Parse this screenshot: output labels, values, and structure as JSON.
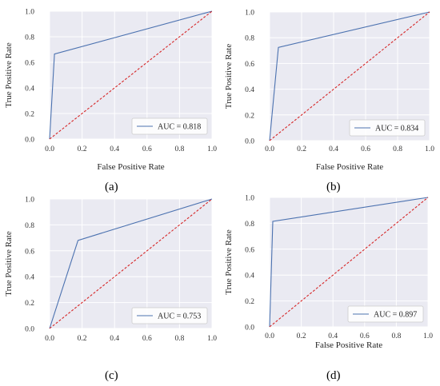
{
  "chart_data": [
    {
      "type": "line",
      "caption": "(a)",
      "xlabel": "False Positive Rate",
      "ylabel": "True Positive Rate",
      "xlim": [
        0.0,
        1.0
      ],
      "ylim": [
        0.0,
        1.0
      ],
      "xticks": [
        "0.0",
        "0.2",
        "0.4",
        "0.6",
        "0.8",
        "1.0"
      ],
      "yticks": [
        "0.0",
        "0.2",
        "0.4",
        "0.6",
        "0.8",
        "1.0"
      ],
      "grid": true,
      "legend": "lower-right",
      "series": [
        {
          "name": "AUC = 0.818",
          "color": "#4c72b0",
          "x": [
            0.0,
            0.03,
            1.0
          ],
          "y": [
            0.0,
            0.665,
            1.0
          ]
        },
        {
          "color": "#d62728",
          "style": "dashed",
          "x": [
            0.0,
            1.0
          ],
          "y": [
            0.0,
            1.0
          ]
        }
      ]
    },
    {
      "type": "line",
      "caption": "(b)",
      "xlabel": "False Positive Rate",
      "ylabel": "True Positive Rate",
      "xlim": [
        0.0,
        1.0
      ],
      "ylim": [
        0.0,
        1.0
      ],
      "xticks": [
        "0.0",
        "0.2",
        "0.4",
        "0.6",
        "0.8",
        "1.0"
      ],
      "yticks": [
        "0.0",
        "0.2",
        "0.4",
        "0.6",
        "0.8",
        "1.0"
      ],
      "grid": true,
      "legend": "lower-right",
      "series": [
        {
          "name": "AUC = 0.834",
          "color": "#4c72b0",
          "x": [
            0.0,
            0.055,
            1.0
          ],
          "y": [
            0.0,
            0.725,
            1.0
          ]
        },
        {
          "color": "#d62728",
          "style": "dashed",
          "x": [
            0.0,
            1.0
          ],
          "y": [
            0.0,
            1.0
          ]
        }
      ]
    },
    {
      "type": "line",
      "caption": "(c)",
      "xlabel": "",
      "ylabel": "True Positive Rate",
      "xlim": [
        0.0,
        1.0
      ],
      "ylim": [
        0.0,
        1.0
      ],
      "xticks": [
        "0.0",
        "0.2",
        "0.4",
        "0.6",
        "0.8",
        "1.0"
      ],
      "yticks": [
        "0.0",
        "0.2",
        "0.4",
        "0.6",
        "0.8",
        "1.0"
      ],
      "grid": true,
      "legend": "lower-right",
      "series": [
        {
          "name": "AUC = 0.753",
          "color": "#4c72b0",
          "x": [
            0.0,
            0.175,
            1.0
          ],
          "y": [
            0.0,
            0.68,
            1.0
          ]
        },
        {
          "color": "#d62728",
          "style": "dashed",
          "x": [
            0.0,
            1.0
          ],
          "y": [
            0.0,
            1.0
          ]
        }
      ]
    },
    {
      "type": "line",
      "caption": "(d)",
      "xlabel": "False Positive Rate",
      "ylabel": "True Positive Rate",
      "xlim": [
        0.0,
        1.0
      ],
      "ylim": [
        0.0,
        1.0
      ],
      "xticks": [
        "0.0",
        "0.2",
        "0.4",
        "0.6",
        "0.8",
        "1.0"
      ],
      "yticks": [
        "0.0",
        "0.2",
        "0.4",
        "0.6",
        "0.8",
        "1.0"
      ],
      "grid": true,
      "legend": "lower-right",
      "series": [
        {
          "name": "AUC = 0.897",
          "color": "#4c72b0",
          "x": [
            0.0,
            0.02,
            1.0
          ],
          "y": [
            0.0,
            0.815,
            1.0
          ]
        },
        {
          "color": "#d62728",
          "style": "dashed",
          "x": [
            0.0,
            1.0
          ],
          "y": [
            0.0,
            1.0
          ]
        }
      ]
    }
  ]
}
